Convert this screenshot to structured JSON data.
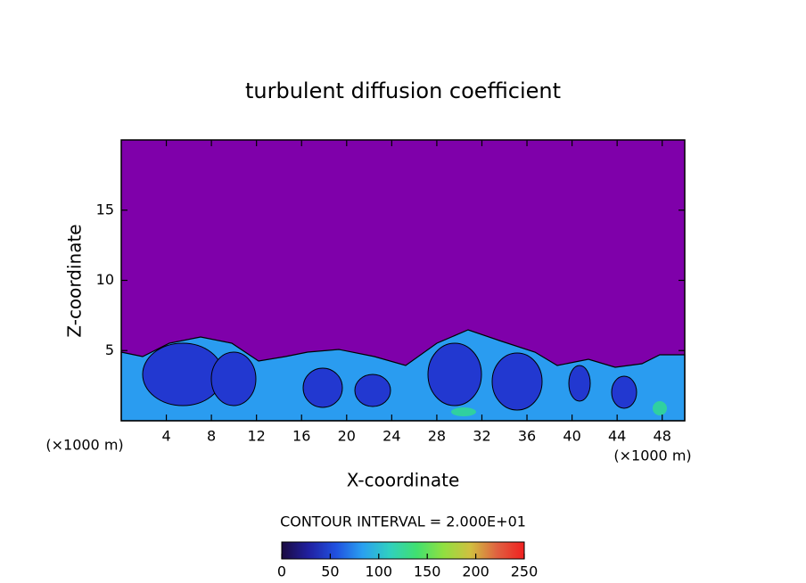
{
  "chart_data": {
    "type": "contour",
    "title": "turbulent diffusion coefficient",
    "x_label": "X-coordinate",
    "y_label": "Z-coordinate",
    "x_unit": "(×1000 m)",
    "y_unit": "(×1000 m)",
    "xlim": [
      0,
      50
    ],
    "xticks": [
      4,
      8,
      12,
      16,
      20,
      24,
      28,
      32,
      36,
      40,
      44,
      48
    ],
    "ylim": [
      0,
      20
    ],
    "yticks": [
      5,
      10,
      15
    ],
    "contour_interval": "CONTOUR INTERVAL = 2.000E+01",
    "colorbar": {
      "lim": [
        0,
        250
      ],
      "ticks": [
        0,
        50,
        100,
        150,
        200,
        250
      ],
      "colors": [
        "#1a0a40",
        "#2020a0",
        "#2050e0",
        "#2aa0f0",
        "#30d0c0",
        "#40e070",
        "#90e040",
        "#d0c040",
        "#e06040",
        "#f02020"
      ]
    },
    "background_color": "#7f00aa"
  }
}
